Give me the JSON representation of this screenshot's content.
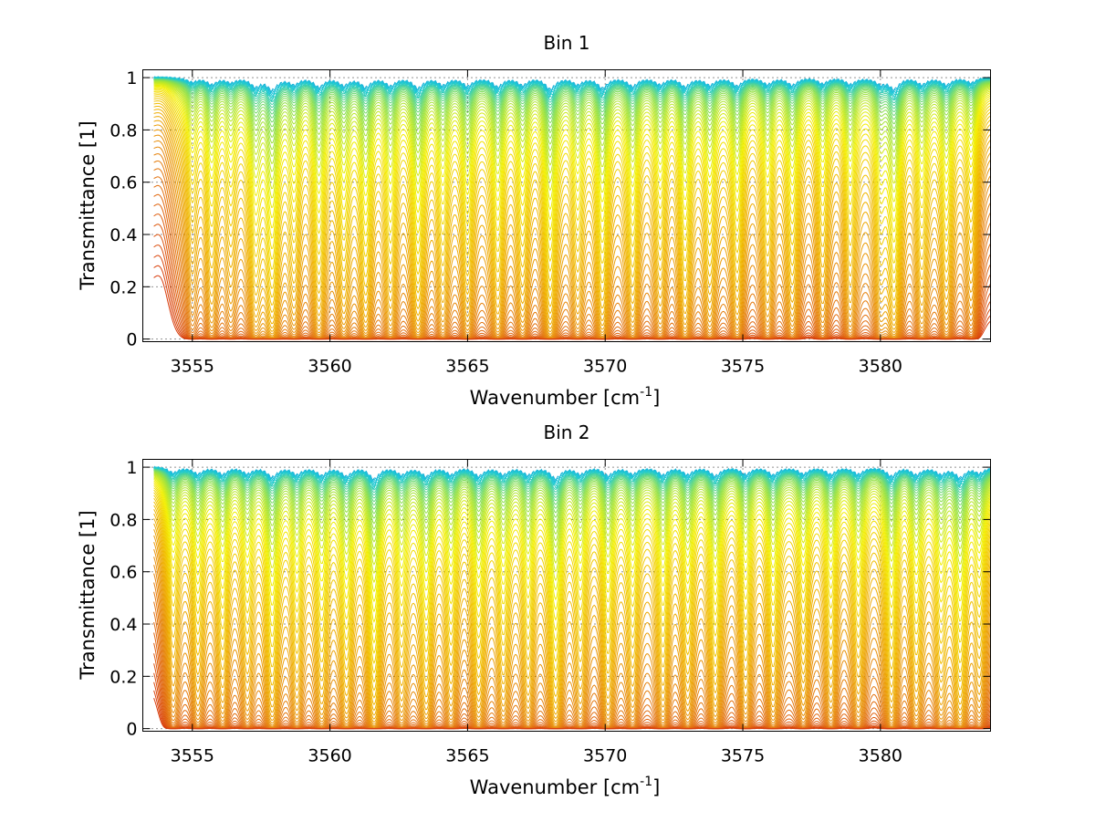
{
  "chart_data": [
    {
      "type": "line",
      "title": "Bin 1",
      "xlabel": "Wavenumber [cm",
      "xlabel_sup": "-1",
      "xlabel_end": "]",
      "ylabel": "Transmittance [1]",
      "xlim": [
        3553.2,
        3584.0
      ],
      "ylim": [
        -0.01,
        1.03
      ],
      "x_ticks": [
        3555,
        3560,
        3565,
        3570,
        3575,
        3580
      ],
      "y_ticks": [
        0,
        0.2,
        0.4,
        0.6,
        0.8,
        1
      ],
      "x_tick_labels": [
        "3555",
        "3560",
        "3565",
        "3570",
        "3575",
        "3580"
      ],
      "y_tick_labels": [
        "0",
        "0.2",
        "0.4",
        "0.6",
        "0.8",
        "1"
      ],
      "grid": true,
      "series_count": 60,
      "colormap": [
        "#1e7ad6",
        "#18c8d8",
        "#8ee04a",
        "#f4f000",
        "#f0b400",
        "#e47a10",
        "#d83c0c"
      ],
      "x_range": [
        3553.6,
        3584.0
      ],
      "absorption_lines": [
        {
          "x": 3555.0,
          "strength": 0.35
        },
        {
          "x": 3555.7,
          "strength": 0.55
        },
        {
          "x": 3556.4,
          "strength": 0.4
        },
        {
          "x": 3557.3,
          "strength": 0.7
        },
        {
          "x": 3557.9,
          "strength": 1.0
        },
        {
          "x": 3558.7,
          "strength": 0.55
        },
        {
          "x": 3559.6,
          "strength": 0.75
        },
        {
          "x": 3560.5,
          "strength": 0.6
        },
        {
          "x": 3561.3,
          "strength": 0.8
        },
        {
          "x": 3562.2,
          "strength": 0.65
        },
        {
          "x": 3563.2,
          "strength": 0.85
        },
        {
          "x": 3564.1,
          "strength": 0.6
        },
        {
          "x": 3565.0,
          "strength": 0.7
        },
        {
          "x": 3566.1,
          "strength": 0.75
        },
        {
          "x": 3567.0,
          "strength": 0.6
        },
        {
          "x": 3568.0,
          "strength": 0.95
        },
        {
          "x": 3569.0,
          "strength": 0.55
        },
        {
          "x": 3569.9,
          "strength": 0.9
        },
        {
          "x": 3571.0,
          "strength": 0.7
        },
        {
          "x": 3572.0,
          "strength": 0.55
        },
        {
          "x": 3572.9,
          "strength": 0.75
        },
        {
          "x": 3573.8,
          "strength": 0.6
        },
        {
          "x": 3574.8,
          "strength": 0.7
        },
        {
          "x": 3575.9,
          "strength": 0.55
        },
        {
          "x": 3576.8,
          "strength": 0.6
        },
        {
          "x": 3577.9,
          "strength": 0.5
        },
        {
          "x": 3578.9,
          "strength": 0.55
        },
        {
          "x": 3580.0,
          "strength": 0.5
        },
        {
          "x": 3580.5,
          "strength": 0.95
        },
        {
          "x": 3581.5,
          "strength": 0.55
        },
        {
          "x": 3582.4,
          "strength": 0.6
        },
        {
          "x": 3583.3,
          "strength": 0.45
        }
      ]
    },
    {
      "type": "line",
      "title": "Bin 2",
      "xlabel": "Wavenumber [cm",
      "xlabel_sup": "-1",
      "xlabel_end": "]",
      "ylabel": "Transmittance [1]",
      "xlim": [
        3553.2,
        3584.0
      ],
      "ylim": [
        -0.01,
        1.03
      ],
      "x_ticks": [
        3555,
        3560,
        3565,
        3570,
        3575,
        3580
      ],
      "y_ticks": [
        0,
        0.2,
        0.4,
        0.6,
        0.8,
        1
      ],
      "x_tick_labels": [
        "3555",
        "3560",
        "3565",
        "3570",
        "3575",
        "3580"
      ],
      "y_tick_labels": [
        "0",
        "0.2",
        "0.4",
        "0.6",
        "0.8",
        "1"
      ],
      "grid": true,
      "series_count": 60,
      "colormap": [
        "#1e7ad6",
        "#18c8d8",
        "#8ee04a",
        "#f4f000",
        "#f0b400",
        "#e47a10",
        "#d83c0c"
      ],
      "x_range": [
        3553.6,
        3584.0
      ],
      "absorption_lines": [
        {
          "x": 3554.3,
          "strength": 0.45
        },
        {
          "x": 3555.2,
          "strength": 0.55
        },
        {
          "x": 3556.1,
          "strength": 0.6
        },
        {
          "x": 3557.0,
          "strength": 0.5
        },
        {
          "x": 3557.9,
          "strength": 0.8
        },
        {
          "x": 3558.8,
          "strength": 0.6
        },
        {
          "x": 3559.7,
          "strength": 0.65
        },
        {
          "x": 3560.6,
          "strength": 0.7
        },
        {
          "x": 3561.6,
          "strength": 1.0
        },
        {
          "x": 3562.6,
          "strength": 0.6
        },
        {
          "x": 3563.5,
          "strength": 0.75
        },
        {
          "x": 3564.4,
          "strength": 0.6
        },
        {
          "x": 3565.4,
          "strength": 0.7
        },
        {
          "x": 3566.3,
          "strength": 0.6
        },
        {
          "x": 3567.2,
          "strength": 0.65
        },
        {
          "x": 3568.2,
          "strength": 0.95
        },
        {
          "x": 3569.1,
          "strength": 0.55
        },
        {
          "x": 3570.1,
          "strength": 0.7
        },
        {
          "x": 3571.0,
          "strength": 0.55
        },
        {
          "x": 3572.1,
          "strength": 0.65
        },
        {
          "x": 3573.0,
          "strength": 0.6
        },
        {
          "x": 3574.0,
          "strength": 0.7
        },
        {
          "x": 3575.1,
          "strength": 0.6
        },
        {
          "x": 3576.1,
          "strength": 0.65
        },
        {
          "x": 3577.2,
          "strength": 0.55
        },
        {
          "x": 3578.2,
          "strength": 0.6
        },
        {
          "x": 3579.2,
          "strength": 0.55
        },
        {
          "x": 3580.4,
          "strength": 0.75
        },
        {
          "x": 3581.3,
          "strength": 0.6
        },
        {
          "x": 3582.2,
          "strength": 0.55
        },
        {
          "x": 3582.9,
          "strength": 0.85
        },
        {
          "x": 3583.6,
          "strength": 0.5
        }
      ]
    }
  ]
}
